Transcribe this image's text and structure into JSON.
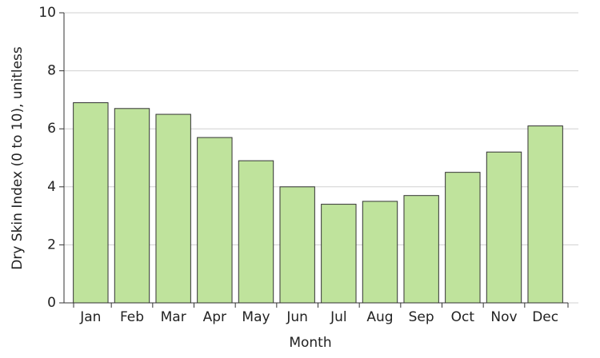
{
  "chart_data": {
    "type": "bar",
    "x_label": "Month",
    "y_label": "Dry Skin Index (0 to 10), unitless",
    "categories": [
      "Jan",
      "Feb",
      "Mar",
      "Apr",
      "May",
      "Jun",
      "Jul",
      "Aug",
      "Sep",
      "Oct",
      "Nov",
      "Dec"
    ],
    "values": [
      6.9,
      6.7,
      6.5,
      5.7,
      4.9,
      4.0,
      3.4,
      3.5,
      3.7,
      4.5,
      5.2,
      6.1
    ],
    "color": "#bfe39c",
    "ylim": [
      0,
      10
    ],
    "yticks": [
      0,
      2,
      4,
      6,
      8,
      10
    ],
    "grid": true
  }
}
